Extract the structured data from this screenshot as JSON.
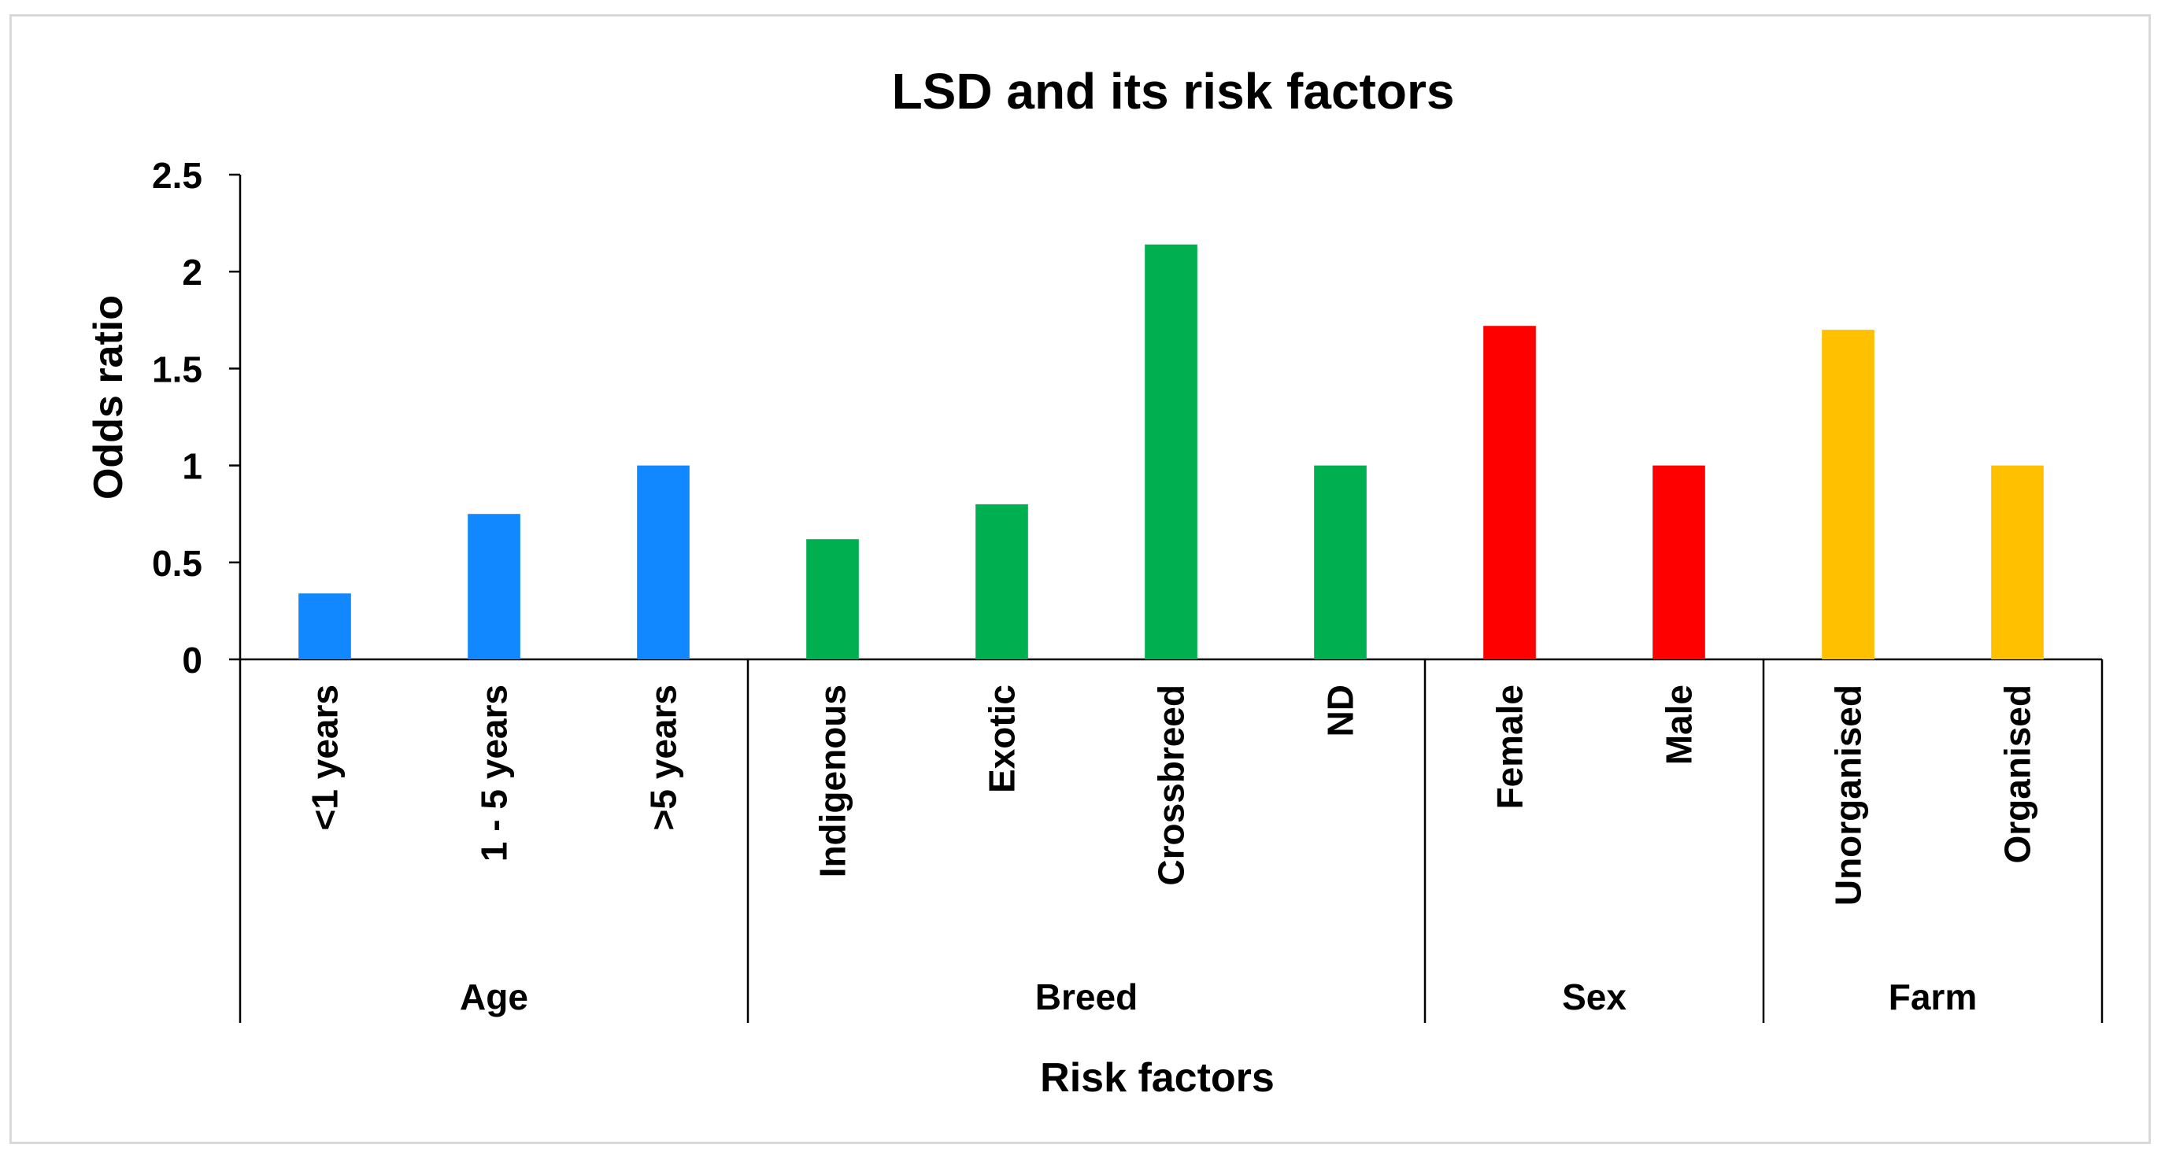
{
  "chart_data": {
    "type": "bar",
    "title": "LSD and its risk factors",
    "xlabel": "Risk factors",
    "ylabel": "Odds ratio",
    "ylim": [
      0,
      2.5
    ],
    "yticks": [
      {
        "value": 0,
        "label": "0"
      },
      {
        "value": 0.5,
        "label": "0.5"
      },
      {
        "value": 1,
        "label": "1"
      },
      {
        "value": 1.5,
        "label": "1.5"
      },
      {
        "value": 2,
        "label": "2"
      },
      {
        "value": 2.5,
        "label": "2.5"
      }
    ],
    "grid": false,
    "legend": "none",
    "groups": [
      {
        "name": "Age",
        "color": "#1188FF",
        "categories": [
          "<1 years",
          "1 - 5 years",
          ">5 years"
        ],
        "values": [
          0.34,
          0.75,
          1.0
        ]
      },
      {
        "name": "Breed",
        "color": "#00B050",
        "categories": [
          "Indigenous",
          "Exotic",
          "Crossbreed",
          "ND"
        ],
        "values": [
          0.62,
          0.8,
          2.14,
          1.0
        ]
      },
      {
        "name": "Sex",
        "color": "#FF0000",
        "categories": [
          "Female",
          "Male"
        ],
        "values": [
          1.72,
          1.0
        ]
      },
      {
        "name": "Farm",
        "color": "#FFC000",
        "categories": [
          "Unorganised",
          "Organised"
        ],
        "values": [
          1.7,
          1.0
        ]
      }
    ]
  }
}
